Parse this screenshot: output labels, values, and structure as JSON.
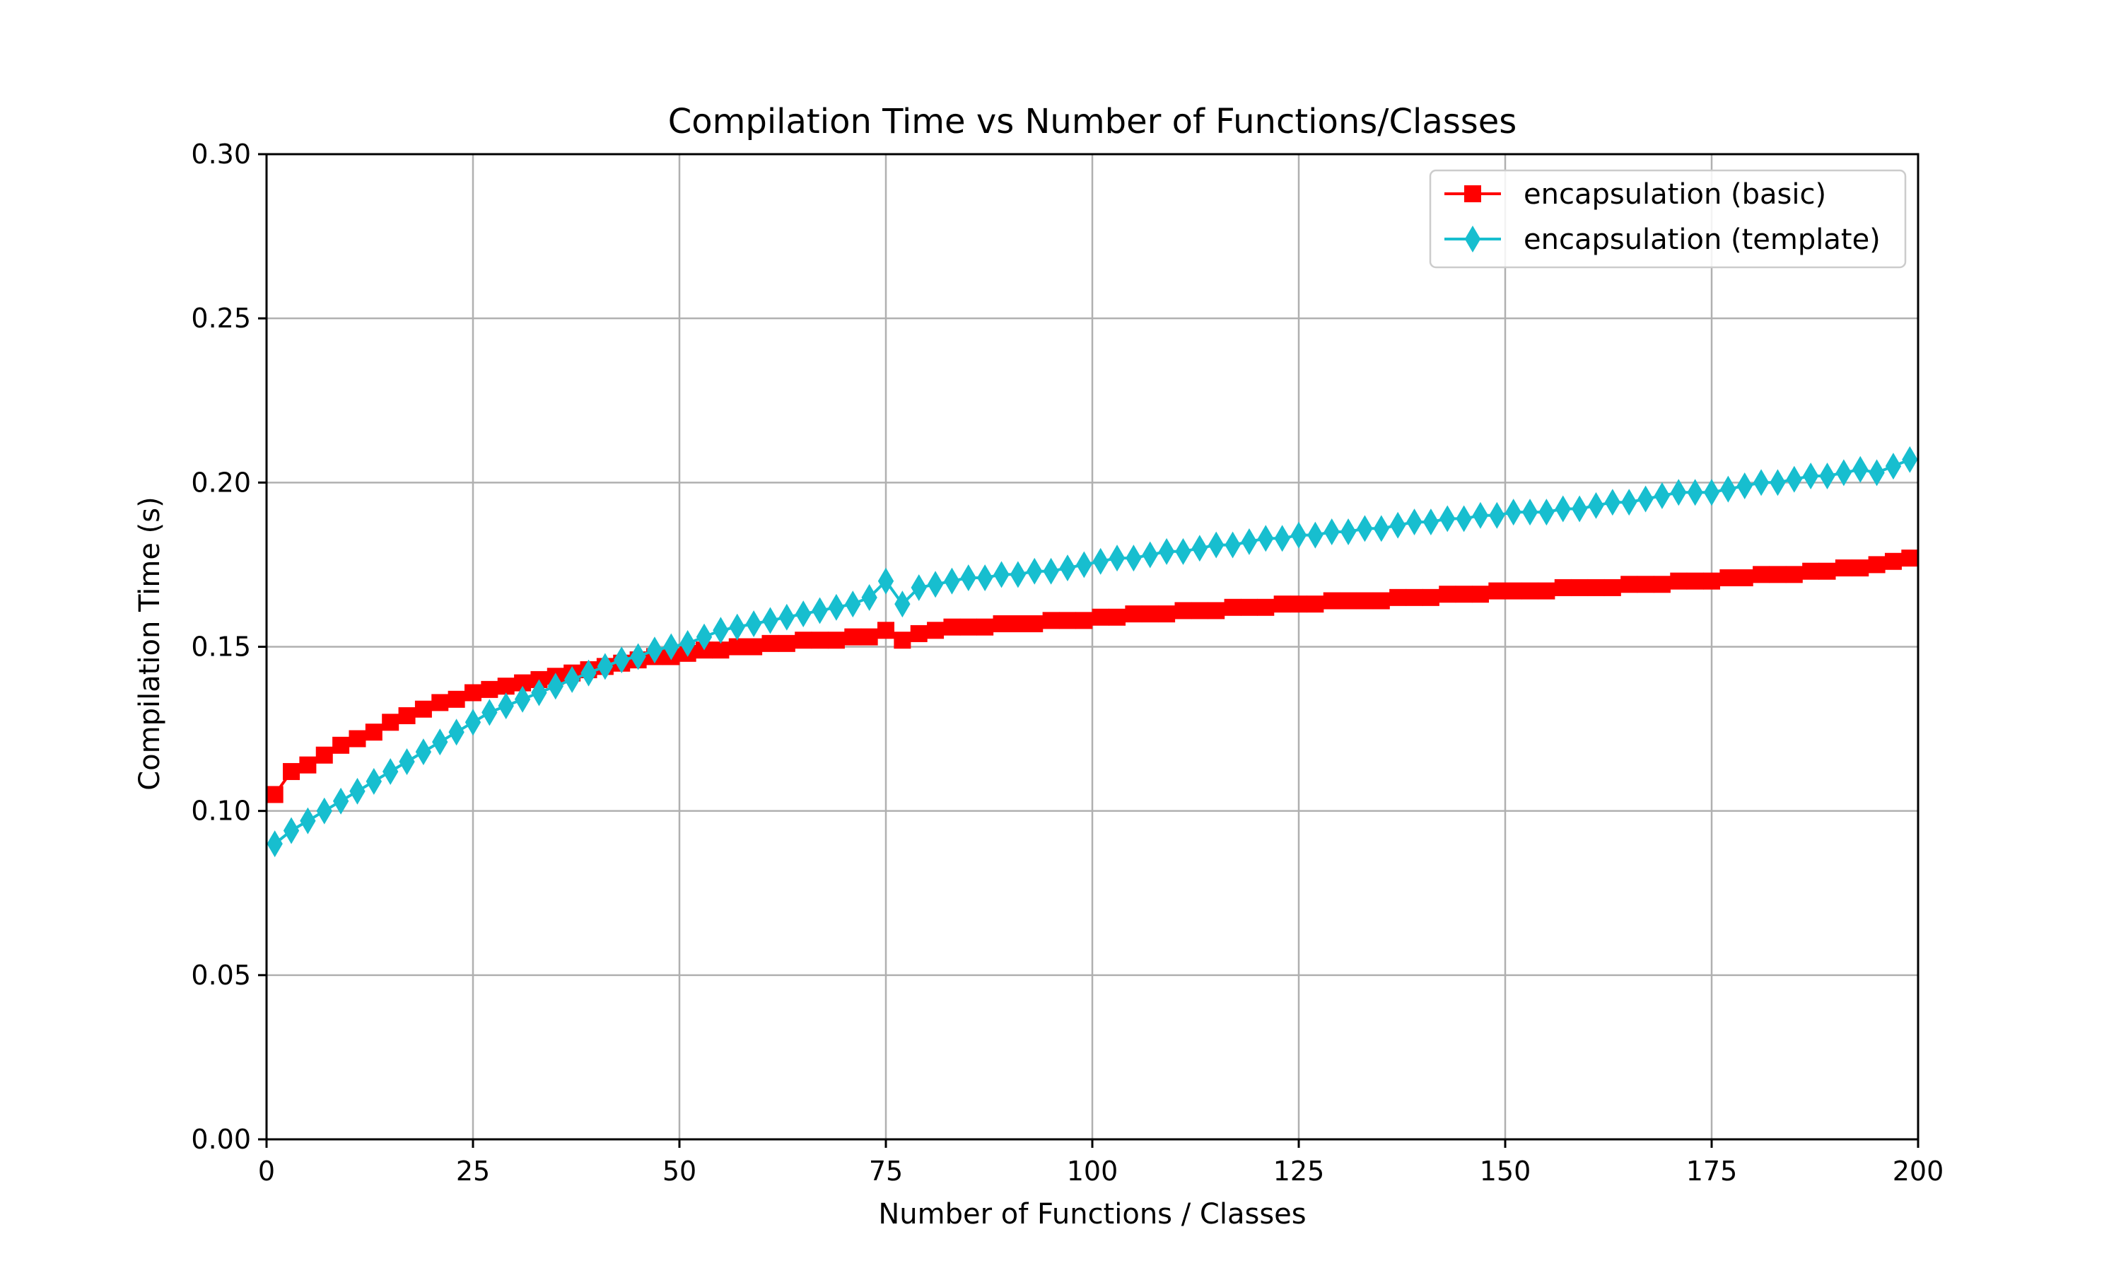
{
  "chart_data": {
    "type": "line",
    "title": "Compilation Time vs Number of Functions/Classes",
    "xlabel": "Number of Functions / Classes",
    "ylabel": "Compilation Time (s)",
    "xlim": [
      0,
      200
    ],
    "ylim": [
      0.0,
      0.3
    ],
    "x_ticks": [
      0,
      25,
      50,
      75,
      100,
      125,
      150,
      175,
      200
    ],
    "x_tick_labels": [
      "0",
      "25",
      "50",
      "75",
      "100",
      "125",
      "150",
      "175",
      "200"
    ],
    "y_ticks": [
      0.0,
      0.05,
      0.1,
      0.15,
      0.2,
      0.25,
      0.3
    ],
    "y_tick_labels": [
      "0.00",
      "0.05",
      "0.10",
      "0.15",
      "0.20",
      "0.25",
      "0.30"
    ],
    "grid": true,
    "legend_position": "top-right",
    "x": [
      1,
      3,
      5,
      7,
      9,
      11,
      13,
      15,
      17,
      19,
      21,
      23,
      25,
      27,
      29,
      31,
      33,
      35,
      37,
      39,
      41,
      43,
      45,
      47,
      49,
      51,
      53,
      55,
      57,
      59,
      61,
      63,
      65,
      67,
      69,
      71,
      73,
      75,
      77,
      79,
      81,
      83,
      85,
      87,
      89,
      91,
      93,
      95,
      97,
      99,
      101,
      103,
      105,
      107,
      109,
      111,
      113,
      115,
      117,
      119,
      121,
      123,
      125,
      127,
      129,
      131,
      133,
      135,
      137,
      139,
      141,
      143,
      145,
      147,
      149,
      151,
      153,
      155,
      157,
      159,
      161,
      163,
      165,
      167,
      169,
      171,
      173,
      175,
      177,
      179,
      181,
      183,
      185,
      187,
      189,
      191,
      193,
      195,
      197,
      199
    ],
    "series": [
      {
        "name": "encapsulation (basic)",
        "color": "#ff0000",
        "marker": "square",
        "values": [
          0.105,
          0.112,
          0.114,
          0.117,
          0.12,
          0.122,
          0.124,
          0.127,
          0.129,
          0.131,
          0.133,
          0.134,
          0.136,
          0.137,
          0.138,
          0.139,
          0.14,
          0.141,
          0.142,
          0.143,
          0.144,
          0.145,
          0.146,
          0.147,
          0.147,
          0.148,
          0.149,
          0.149,
          0.15,
          0.15,
          0.151,
          0.151,
          0.152,
          0.152,
          0.152,
          0.153,
          0.153,
          0.155,
          0.152,
          0.154,
          0.155,
          0.156,
          0.156,
          0.156,
          0.157,
          0.157,
          0.157,
          0.158,
          0.158,
          0.158,
          0.159,
          0.159,
          0.16,
          0.16,
          0.16,
          0.161,
          0.161,
          0.161,
          0.162,
          0.162,
          0.162,
          0.163,
          0.163,
          0.163,
          0.164,
          0.164,
          0.164,
          0.164,
          0.165,
          0.165,
          0.165,
          0.166,
          0.166,
          0.166,
          0.167,
          0.167,
          0.167,
          0.167,
          0.168,
          0.168,
          0.168,
          0.168,
          0.169,
          0.169,
          0.169,
          0.17,
          0.17,
          0.17,
          0.171,
          0.171,
          0.172,
          0.172,
          0.172,
          0.173,
          0.173,
          0.174,
          0.174,
          0.175,
          0.176,
          0.177
        ]
      },
      {
        "name": "encapsulation (template)",
        "color": "#17becf",
        "marker": "diamond",
        "values": [
          0.09,
          0.094,
          0.097,
          0.1,
          0.103,
          0.106,
          0.109,
          0.112,
          0.115,
          0.118,
          0.121,
          0.124,
          0.127,
          0.13,
          0.132,
          0.134,
          0.136,
          0.138,
          0.14,
          0.142,
          0.144,
          0.146,
          0.147,
          0.149,
          0.15,
          0.151,
          0.153,
          0.155,
          0.156,
          0.157,
          0.158,
          0.159,
          0.16,
          0.161,
          0.162,
          0.163,
          0.165,
          0.17,
          0.163,
          0.168,
          0.169,
          0.17,
          0.171,
          0.171,
          0.172,
          0.172,
          0.173,
          0.173,
          0.174,
          0.175,
          0.176,
          0.177,
          0.177,
          0.178,
          0.179,
          0.179,
          0.18,
          0.181,
          0.181,
          0.182,
          0.183,
          0.183,
          0.184,
          0.184,
          0.185,
          0.185,
          0.186,
          0.186,
          0.187,
          0.188,
          0.188,
          0.189,
          0.189,
          0.19,
          0.19,
          0.191,
          0.191,
          0.191,
          0.192,
          0.192,
          0.193,
          0.194,
          0.194,
          0.195,
          0.196,
          0.197,
          0.197,
          0.197,
          0.198,
          0.199,
          0.2,
          0.2,
          0.201,
          0.202,
          0.202,
          0.203,
          0.204,
          0.203,
          0.205,
          0.207
        ]
      }
    ]
  }
}
